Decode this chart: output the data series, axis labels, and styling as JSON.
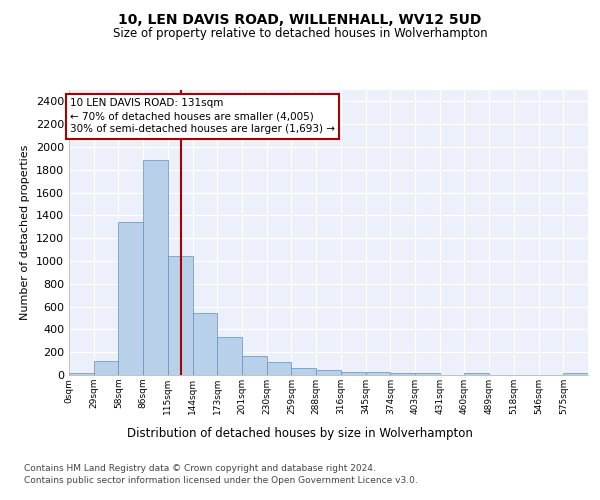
{
  "title": "10, LEN DAVIS ROAD, WILLENHALL, WV12 5UD",
  "subtitle": "Size of property relative to detached houses in Wolverhampton",
  "xlabel": "Distribution of detached houses by size in Wolverhampton",
  "ylabel": "Number of detached properties",
  "bin_labels": [
    "0sqm",
    "29sqm",
    "58sqm",
    "86sqm",
    "115sqm",
    "144sqm",
    "173sqm",
    "201sqm",
    "230sqm",
    "259sqm",
    "288sqm",
    "316sqm",
    "345sqm",
    "374sqm",
    "403sqm",
    "431sqm",
    "460sqm",
    "489sqm",
    "518sqm",
    "546sqm",
    "575sqm"
  ],
  "bar_values": [
    15,
    120,
    1340,
    1890,
    1045,
    540,
    335,
    170,
    110,
    60,
    40,
    30,
    25,
    20,
    15,
    0,
    20,
    0,
    0,
    0,
    15
  ],
  "bar_color": "#b8d0ea",
  "bar_edgecolor": "#6090bb",
  "vline_x": 131,
  "vline_color": "#aa0000",
  "ylim": [
    0,
    2500
  ],
  "yticks": [
    0,
    200,
    400,
    600,
    800,
    1000,
    1200,
    1400,
    1600,
    1800,
    2000,
    2200,
    2400
  ],
  "annotation_line1": "10 LEN DAVIS ROAD: 131sqm",
  "annotation_line2": "← 70% of detached houses are smaller (4,005)",
  "annotation_line3": "30% of semi-detached houses are larger (1,693) →",
  "annotation_box_edgecolor": "#aa0000",
  "footer_line1": "Contains HM Land Registry data © Crown copyright and database right 2024.",
  "footer_line2": "Contains public sector information licensed under the Open Government Licence v3.0.",
  "bin_width": 29,
  "n_bins": 21,
  "property_size": 131,
  "bg_color": "#ecf0fb",
  "grid_color": "#d0d8e8",
  "title_fontsize": 10,
  "subtitle_fontsize": 8.5,
  "ylabel_fontsize": 8,
  "xlabel_fontsize": 8.5,
  "ytick_fontsize": 8,
  "xtick_fontsize": 6.5,
  "footer_fontsize": 6.5,
  "annot_fontsize": 7.5
}
